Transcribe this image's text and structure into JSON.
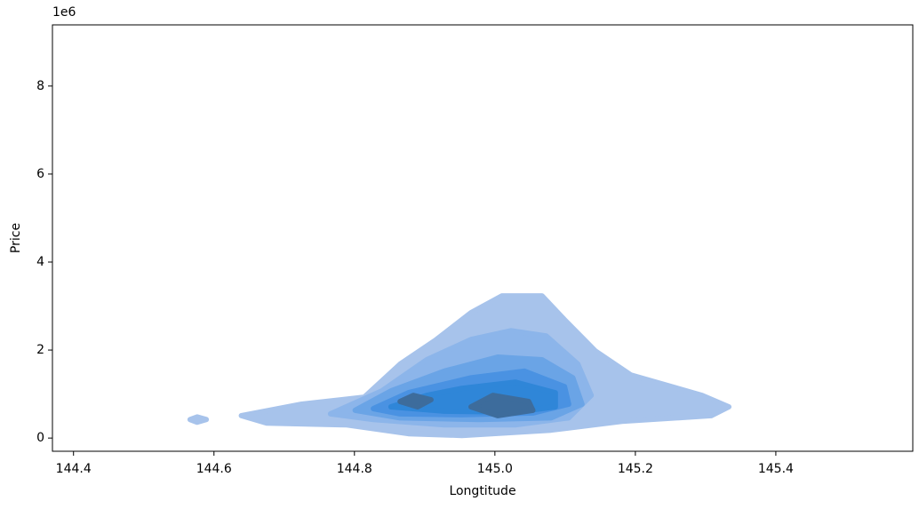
{
  "chart_data": {
    "type": "kde",
    "x_label": "Longtitude",
    "y_label": "Price",
    "y_offset_label": "1e6",
    "xlim": [
      144.37,
      145.595
    ],
    "ylim": [
      -0.3,
      9.39
    ],
    "xticks": [
      144.4,
      144.6,
      144.8,
      {
        "value": 145,
        "label": "145.0"
      },
      145.2,
      145.4
    ],
    "yticks": [
      0,
      2,
      4,
      6,
      8
    ],
    "series": [
      {
        "color": "#a7c3eb",
        "x": [
          144.639,
          144.725,
          144.814,
          144.865,
          144.915,
          144.966,
          145.01,
          145.067,
          145.099,
          145.143,
          145.194,
          145.295,
          145.333,
          145.308,
          145.181,
          145.08,
          144.953,
          144.877,
          144.789,
          144.675,
          null,
          144.566,
          144.576,
          144.589,
          144.576
        ],
        "y": [
          0.51,
          0.77,
          0.93,
          1.68,
          2.22,
          2.85,
          3.23,
          3.23,
          2.69,
          1.98,
          1.43,
          0.97,
          0.71,
          0.51,
          0.38,
          0.18,
          0.06,
          0.1,
          0.3,
          0.34,
          null,
          0.42,
          0.48,
          0.42,
          0.36
        ]
      },
      {
        "color": "#8cb5ea",
        "x": [
          144.766,
          144.839,
          144.903,
          144.966,
          145.023,
          145.073,
          145.118,
          145.137,
          145.105,
          145.029,
          144.928,
          144.827
        ],
        "y": [
          0.55,
          1.07,
          1.78,
          2.24,
          2.44,
          2.32,
          1.68,
          0.97,
          0.46,
          0.3,
          0.3,
          0.42
        ]
      },
      {
        "color": "#6aa4e6",
        "x": [
          144.801,
          144.852,
          144.928,
          145.004,
          145.067,
          145.111,
          145.124,
          145.08,
          144.978,
          144.865
        ],
        "y": [
          0.63,
          1.07,
          1.52,
          1.84,
          1.78,
          1.37,
          0.77,
          0.46,
          0.42,
          0.46
        ]
      },
      {
        "color": "#4a92e2",
        "x": [
          144.827,
          144.877,
          144.966,
          145.042,
          145.099,
          145.105,
          145.054,
          144.953,
          144.865
        ],
        "y": [
          0.67,
          1.03,
          1.37,
          1.52,
          1.17,
          0.77,
          0.57,
          0.53,
          0.55
        ]
      },
      {
        "color": "#2f86d8",
        "x": [
          144.852,
          144.903,
          144.953,
          145.029,
          145.086,
          145.086,
          145.029,
          144.928
        ],
        "y": [
          0.71,
          0.97,
          1.13,
          1.27,
          1.03,
          0.71,
          0.59,
          0.61
        ]
      },
      {
        "color": "#3d6c9c",
        "x": [
          144.865,
          144.884,
          144.909,
          144.89,
          null,
          144.966,
          144.997,
          145.048,
          145.054,
          145.004
        ],
        "y": [
          0.83,
          0.97,
          0.87,
          0.71,
          null,
          0.71,
          0.97,
          0.83,
          0.63,
          0.51
        ]
      }
    ]
  }
}
